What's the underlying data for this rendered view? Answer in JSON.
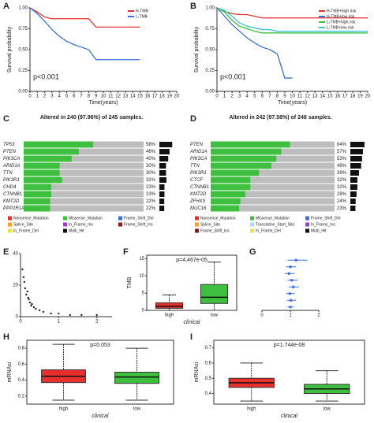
{
  "chart_data": [
    {
      "type": "line",
      "label": "A",
      "xlabel": "Time(years)",
      "ylabel": "Survival probability",
      "annotation": "p<0.001",
      "x": [
        0,
        1,
        2,
        3,
        4,
        5,
        6,
        7,
        8,
        9,
        10,
        11,
        12,
        13,
        14,
        15
      ],
      "series": [
        {
          "name": "H-TMB",
          "color": "#e8312f",
          "values": [
            1,
            0.95,
            0.89,
            0.87,
            0.87,
            0.87,
            0.87,
            0.87,
            0.87,
            0.77,
            0.77,
            0.77,
            0.77,
            0.77,
            0.77,
            0.77
          ]
        },
        {
          "name": "L-TMB",
          "color": "#3b6fd8",
          "values": [
            1,
            0.93,
            0.84,
            0.74,
            0.66,
            0.6,
            0.56,
            0.53,
            0.5,
            0.38,
            0.38,
            0.38,
            0.38,
            0.38,
            0.38,
            0.38
          ]
        }
      ],
      "xlim": [
        0,
        20
      ],
      "xticks": [
        0,
        1,
        2,
        3,
        4,
        5,
        6,
        7,
        8,
        9,
        10,
        11,
        12,
        13,
        14,
        15,
        16,
        17,
        18,
        19,
        20
      ],
      "ylim": [
        0,
        1
      ],
      "yticks": [
        {
          "value": 0,
          "label": "0.00"
        },
        {
          "value": 0.25,
          "label": "0.25"
        },
        {
          "value": 0.5,
          "label": "0.50"
        },
        {
          "value": 0.75,
          "label": "0.75"
        },
        {
          "value": 1,
          "label": "1.00"
        }
      ]
    },
    {
      "type": "line",
      "label": "B",
      "xlabel": "Time(years)",
      "ylabel": "Survival probability",
      "annotation": "p<0.001",
      "x": [
        0,
        1,
        2,
        3,
        4,
        5,
        6,
        7,
        8,
        9,
        10,
        11,
        12,
        13,
        14,
        15,
        16,
        17,
        18,
        19,
        20
      ],
      "series": [
        {
          "name": "H-TMB+high risk",
          "color": "#e8312f",
          "values": [
            1,
            0.96,
            0.93,
            0.92,
            0.92,
            0.9,
            0.88,
            0.88,
            0.88,
            0.88,
            0.88,
            0.88,
            0.88,
            0.88,
            0.88,
            0.88,
            0.88,
            0.88,
            0.88,
            0.88,
            0.88
          ]
        },
        {
          "name": "H-TMB+low risk",
          "color": "#3b6fd8",
          "values": [
            1,
            0.9,
            0.8,
            0.72,
            0.64,
            0.58,
            0.53,
            0.5,
            0.45,
            0.16,
            0.16,
            null,
            null,
            null,
            null,
            null,
            null,
            null,
            null,
            null,
            null
          ]
        },
        {
          "name": "L-TMB+high risk",
          "color": "#3fbf3f",
          "values": [
            1,
            0.95,
            0.85,
            0.78,
            0.75,
            0.72,
            0.7,
            0.7,
            0.7,
            0.7,
            0.7,
            0.7,
            0.7,
            0.7,
            0.7,
            0.7,
            0.7,
            0.7,
            0.7,
            0.7,
            0.7
          ]
        },
        {
          "name": "L-TMB+low risk",
          "color": "#37c6d8",
          "values": [
            1,
            0.97,
            0.9,
            0.82,
            0.78,
            0.76,
            0.74,
            0.74,
            0.72,
            0.72,
            0.72,
            0.72,
            0.72,
            0.72,
            0.72,
            0.72,
            0.72,
            0.72,
            0.72,
            0.72,
            0.72
          ]
        }
      ],
      "xlim": [
        0,
        20
      ],
      "xticks": [
        0,
        1,
        2,
        3,
        4,
        5,
        6,
        7,
        8,
        9,
        10,
        11,
        12,
        13,
        14,
        15,
        16,
        17,
        18,
        19,
        20
      ],
      "ylim": [
        0,
        1
      ],
      "yticks": [
        {
          "value": 0,
          "label": "0.00"
        },
        {
          "value": 0.25,
          "label": "0.25"
        },
        {
          "value": 0.5,
          "label": "0.50"
        },
        {
          "value": 0.75,
          "label": "0.75"
        },
        {
          "value": 1,
          "label": "1.00"
        }
      ]
    },
    {
      "type": "oncoplot",
      "label": "C",
      "title": "Altered in 240 (97.96%) of 245 samples.",
      "categories": [
        "TP53",
        "PTEN",
        "PIK3CA",
        "ARID1A",
        "TTN",
        "PIK3R1",
        "CHD4",
        "CTNNB1",
        "KMT2D",
        "PPP2R1A"
      ],
      "values": [
        58,
        46,
        40,
        30,
        30,
        32,
        23,
        23,
        22,
        22
      ],
      "value_labels": [
        "58%",
        "46%",
        "40%",
        "30%",
        "30%",
        "32%",
        "23%",
        "23%",
        "22%",
        "22%"
      ],
      "color": "#3fbf3f",
      "legend": [
        {
          "name": "Nonsense_Mutation",
          "color": "#e8312f"
        },
        {
          "name": "Missense_Mutation",
          "color": "#3fbf3f"
        },
        {
          "name": "Frame_Shift_Del",
          "color": "#3b6fd8"
        },
        {
          "name": "Splice_Site",
          "color": "#ff9f1c"
        },
        {
          "name": "In_Frame_Ins",
          "color": "#9b3fbf"
        },
        {
          "name": "Frame_Shift_Ins",
          "color": "#8b1a1a"
        },
        {
          "name": "In_Frame_Del",
          "color": "#f5e042"
        },
        {
          "name": "Multi_Hit",
          "color": "#111111"
        }
      ]
    },
    {
      "type": "oncoplot",
      "label": "D",
      "title": "Altered in 242 (97.58%) of 248 samples.",
      "categories": [
        "PTEN",
        "ARID1A",
        "PIK3CA",
        "TTN",
        "PIK3R1",
        "CTCF",
        "CTNNB1",
        "KMT2D",
        "ZFHX3",
        "MUC16"
      ],
      "values": [
        64,
        57,
        53,
        49,
        39,
        32,
        32,
        28,
        24,
        23
      ],
      "value_labels": [
        "64%",
        "57%",
        "53%",
        "49%",
        "39%",
        "32%",
        "32%",
        "28%",
        "24%",
        "23%"
      ],
      "color": "#3fbf3f",
      "legend": [
        {
          "name": "Nonsense_Mutation",
          "color": "#e8312f"
        },
        {
          "name": "Missense_Mutation",
          "color": "#3fbf3f"
        },
        {
          "name": "Frame_Shift_Del",
          "color": "#3b6fd8"
        },
        {
          "name": "Splice_Site",
          "color": "#ff9f1c"
        },
        {
          "name": "Translation_Start_Site",
          "color": "#a0e0ff"
        },
        {
          "name": "In_Frame_Ins",
          "color": "#9b3fbf"
        },
        {
          "name": "Frame_Shift_Ins",
          "color": "#8b1a1a"
        },
        {
          "name": "In_Frame_Del",
          "color": "#f5e042"
        },
        {
          "name": "Multi_Hit",
          "color": "#111111"
        }
      ]
    },
    {
      "type": "scatter",
      "label": "E",
      "color": "#222222",
      "x": [
        0.05,
        0.1,
        0.12,
        0.15,
        0.2,
        0.25,
        0.3,
        0.35,
        0.4,
        0.5,
        0.6,
        0.8,
        1.0,
        1.3,
        1.6,
        2.0,
        0.08,
        0.18,
        0.22,
        0.28
      ],
      "values": [
        30,
        22,
        18,
        14,
        12,
        9,
        8,
        6,
        5,
        4,
        3,
        2,
        2,
        1,
        1,
        1,
        25,
        16,
        11,
        7
      ],
      "xlim": [
        0,
        2.4
      ],
      "xticks": [
        0,
        1,
        2
      ],
      "ylim": [
        0,
        40
      ],
      "yticks": [
        0,
        20,
        40
      ]
    },
    {
      "type": "box",
      "label": "F",
      "annotation": "p=4.467e-05",
      "xlabel": "clinical",
      "ylabel": "TMB",
      "categories": [
        "high",
        "low"
      ],
      "colors": [
        "#e8312f",
        "#3fbf3f"
      ],
      "boxes": [
        {
          "min": 0,
          "q1": 0.6,
          "median": 1.2,
          "q3": 2.2,
          "max": 4.5
        },
        {
          "min": 0,
          "q1": 2,
          "median": 3.8,
          "q3": 7.5,
          "max": 14
        }
      ],
      "ylim": [
        0,
        16
      ],
      "yticks": [
        0,
        5,
        10,
        15
      ]
    },
    {
      "type": "forest",
      "label": "G",
      "color": "#3b6fd8",
      "values": [
        1.2,
        1.0,
        0.95,
        1.05,
        1.1,
        0.98,
        1.02,
        1.0
      ],
      "lower": [
        0.9,
        0.85,
        0.8,
        0.9,
        0.95,
        0.85,
        0.88,
        0.9
      ],
      "upper": [
        1.6,
        1.2,
        1.15,
        1.25,
        1.3,
        1.15,
        1.2,
        1.12
      ],
      "xlim": [
        0,
        2
      ],
      "xticks": [
        0,
        1,
        2
      ]
    },
    {
      "type": "box",
      "label": "H",
      "annotation": "p=0.053",
      "xlabel": "clinical",
      "ylabel": "mRNAsi",
      "categories": [
        "high",
        "low"
      ],
      "colors": [
        "#e8312f",
        "#3fbf3f"
      ],
      "boxes": [
        {
          "min": 0.15,
          "q1": 0.37,
          "median": 0.45,
          "q3": 0.53,
          "max": 0.85
        },
        {
          "min": 0.15,
          "q1": 0.36,
          "median": 0.44,
          "q3": 0.5,
          "max": 0.8
        }
      ],
      "ylim": [
        0.1,
        0.9
      ],
      "yticks": [
        0.2,
        0.4,
        0.6,
        0.8
      ]
    },
    {
      "type": "box",
      "label": "I",
      "annotation": "p=1.744e-08",
      "xlabel": "clinical",
      "ylabel": "mRNAsi",
      "categories": [
        "high",
        "low"
      ],
      "colors": [
        "#e8312f",
        "#3fbf3f"
      ],
      "boxes": [
        {
          "min": 0.35,
          "q1": 0.44,
          "median": 0.47,
          "q3": 0.5,
          "max": 0.6
        },
        {
          "min": 0.35,
          "q1": 0.4,
          "median": 0.43,
          "q3": 0.46,
          "max": 0.55
        }
      ],
      "ylim": [
        0.33,
        0.75
      ],
      "yticks": [
        0.4,
        0.5,
        0.6,
        0.7
      ]
    }
  ]
}
